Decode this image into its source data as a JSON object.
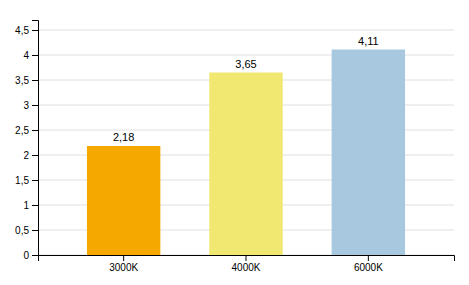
{
  "chart_data": {
    "type": "bar",
    "categories": [
      "3000K",
      "4000K",
      "6000K"
    ],
    "values": [
      2.18,
      3.65,
      4.11
    ],
    "value_labels": [
      "2,18",
      "3,65",
      "4,11"
    ],
    "colors": [
      "#F5A800",
      "#F0E870",
      "#A8C8E0"
    ],
    "ylim": [
      0,
      4.7
    ],
    "yticks": [
      0,
      {
        "value": 0.5,
        "label": "0,5"
      },
      1,
      {
        "value": 1.5,
        "label": "1,5"
      },
      2,
      {
        "value": 2.5,
        "label": "2,5"
      },
      3,
      {
        "value": 3.5,
        "label": "3,5"
      },
      4,
      {
        "value": 4.5,
        "label": "4,5"
      }
    ],
    "grid": true,
    "data_labels": true
  }
}
